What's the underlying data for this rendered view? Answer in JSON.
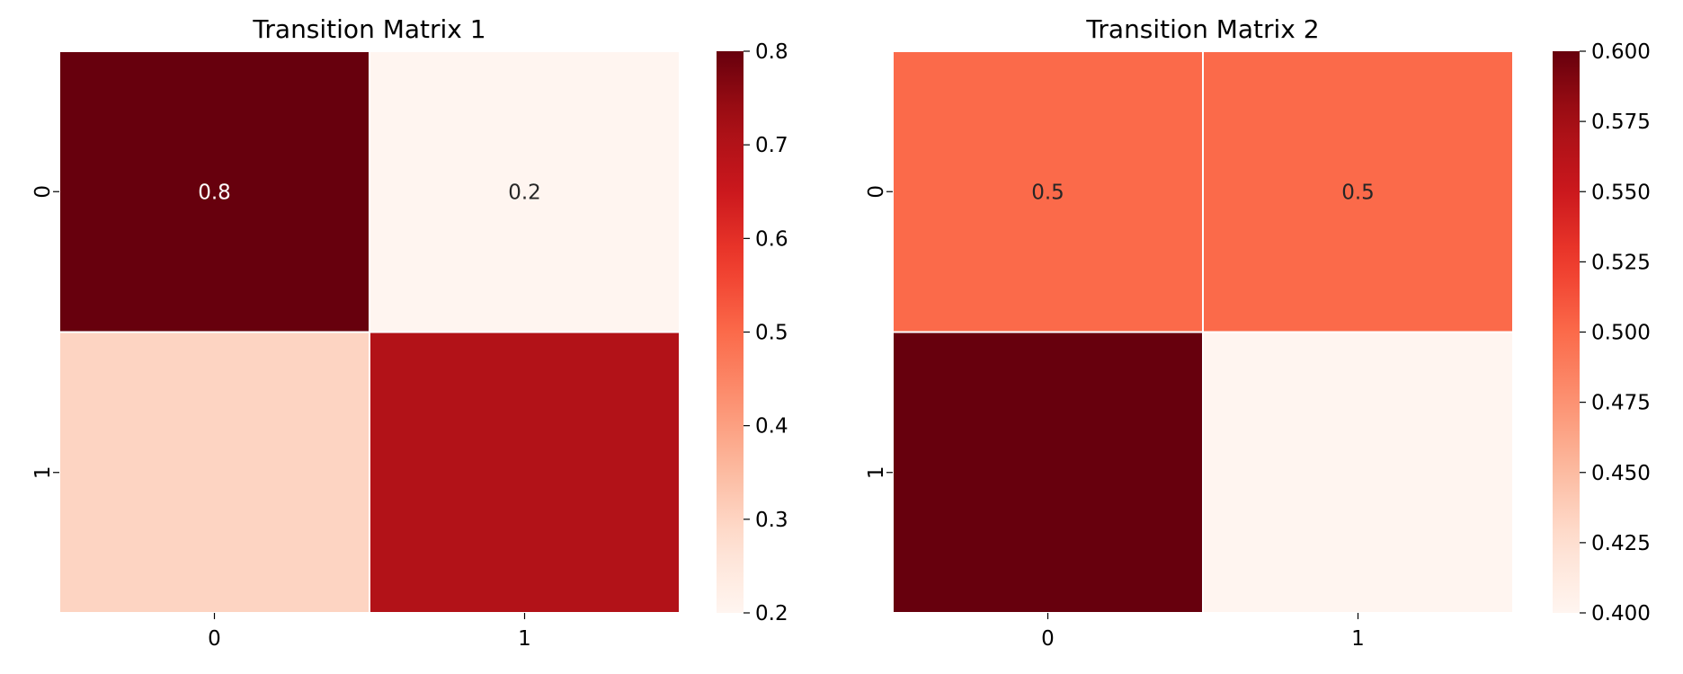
{
  "chart_data": [
    {
      "type": "heatmap",
      "title": "Transition Matrix 1",
      "xlabel": "",
      "ylabel": "",
      "x_categories": [
        "0",
        "1"
      ],
      "y_categories": [
        "0",
        "1"
      ],
      "values": [
        [
          0.8,
          0.2
        ],
        [
          0.3,
          0.7
        ]
      ],
      "annotations": [
        [
          "0.8",
          "0.2"
        ],
        [
          "",
          ""
        ]
      ],
      "colormap": "Reds",
      "vmin": 0.2,
      "vmax": 0.8,
      "colorbar_ticks": [
        "0.2",
        "0.3",
        "0.4",
        "0.5",
        "0.6",
        "0.7",
        "0.8"
      ]
    },
    {
      "type": "heatmap",
      "title": "Transition Matrix 2",
      "xlabel": "",
      "ylabel": "",
      "x_categories": [
        "0",
        "1"
      ],
      "y_categories": [
        "0",
        "1"
      ],
      "values": [
        [
          0.5,
          0.5
        ],
        [
          0.6,
          0.4
        ]
      ],
      "annotations": [
        [
          "0.5",
          "0.5"
        ],
        [
          "",
          ""
        ]
      ],
      "colormap": "Reds",
      "vmin": 0.4,
      "vmax": 0.6,
      "colorbar_ticks": [
        "0.400",
        "0.425",
        "0.450",
        "0.475",
        "0.500",
        "0.525",
        "0.550",
        "0.575",
        "0.600"
      ]
    }
  ],
  "colors": {
    "cell_border": "#ffffff",
    "annotation_light": "#ffffff",
    "annotation_dark": "#262626"
  }
}
